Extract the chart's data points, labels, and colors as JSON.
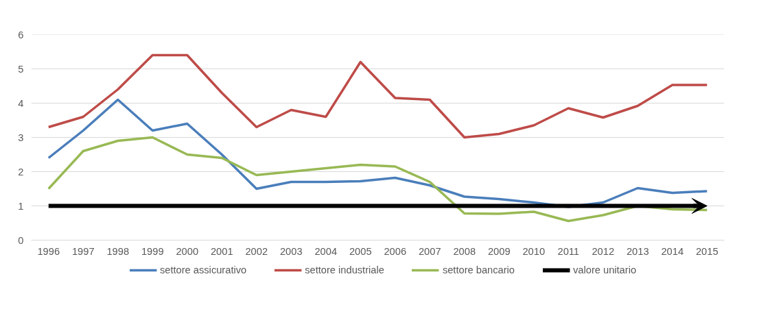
{
  "chart_data": {
    "type": "line",
    "categories": [
      "1996",
      "1997",
      "1998",
      "1999",
      "2000",
      "2001",
      "2002",
      "2003",
      "2004",
      "2005",
      "2006",
      "2007",
      "2008",
      "2009",
      "2010",
      "2011",
      "2012",
      "2013",
      "2014",
      "2015"
    ],
    "series": [
      {
        "name": "settore assicurativo",
        "color": "#4a7ebb",
        "values": [
          2.4,
          3.2,
          4.1,
          3.2,
          3.4,
          2.5,
          1.5,
          1.7,
          1.7,
          1.72,
          1.82,
          1.6,
          1.27,
          1.2,
          1.1,
          0.97,
          1.1,
          1.52,
          1.38,
          1.43
        ]
      },
      {
        "name": "settore industriale",
        "color": "#be4b48",
        "values": [
          3.3,
          3.6,
          4.4,
          5.4,
          5.4,
          4.3,
          3.3,
          3.8,
          3.6,
          5.2,
          4.15,
          4.1,
          3.0,
          3.1,
          3.35,
          3.85,
          3.58,
          3.92,
          4.53,
          4.53
        ]
      },
      {
        "name": "settore bancario",
        "color": "#98b954",
        "values": [
          1.5,
          2.6,
          2.9,
          3.0,
          2.5,
          2.4,
          1.9,
          2.0,
          2.1,
          2.2,
          2.15,
          1.7,
          0.78,
          0.77,
          0.83,
          0.56,
          0.73,
          1.0,
          0.9,
          0.88
        ]
      }
    ],
    "ref_lines": [
      {
        "axis": "y",
        "value": 1,
        "label": "valore unitario",
        "color": "#000000"
      }
    ],
    "ylim": [
      0,
      6
    ],
    "yticks": [
      0,
      1,
      2,
      3,
      4,
      5,
      6
    ],
    "grid": "y",
    "legend": "bottom"
  }
}
